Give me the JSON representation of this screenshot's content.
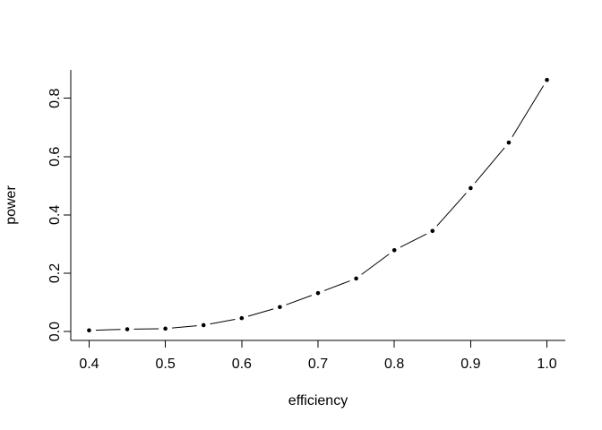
{
  "figure": {
    "background": "#ffffff",
    "ink_color": "#000000"
  },
  "chart_data": {
    "type": "line",
    "subtype": "points-and-lines",
    "title": "",
    "xlabel": "efficiency",
    "ylabel": "power",
    "x": [
      0.4,
      0.45,
      0.5,
      0.55,
      0.6,
      0.65,
      0.7,
      0.75,
      0.8,
      0.85,
      0.9,
      0.95,
      1.0
    ],
    "series": [
      {
        "name": "power",
        "values": [
          0.004,
          0.008,
          0.01,
          0.022,
          0.046,
          0.084,
          0.132,
          0.182,
          0.279,
          0.345,
          0.492,
          0.648,
          0.863
        ]
      }
    ],
    "x_ticks": {
      "values": [
        0.4,
        0.5,
        0.6,
        0.7,
        0.8,
        0.9,
        1.0
      ],
      "labels": [
        "0.4",
        "0.5",
        "0.6",
        "0.7",
        "0.8",
        "0.9",
        "1.0"
      ]
    },
    "y_ticks": {
      "values": [
        0.0,
        0.2,
        0.4,
        0.6,
        0.8
      ],
      "labels": [
        "0.0",
        "0.2",
        "0.4",
        "0.6",
        "0.8"
      ]
    },
    "xlim": [
      0.376,
      1.024
    ],
    "ylim": [
      -0.0304,
      0.8974
    ],
    "grid": false,
    "legend": false,
    "style": {
      "color": "#000000",
      "background": "#ffffff",
      "marker": "filled-circle"
    }
  }
}
